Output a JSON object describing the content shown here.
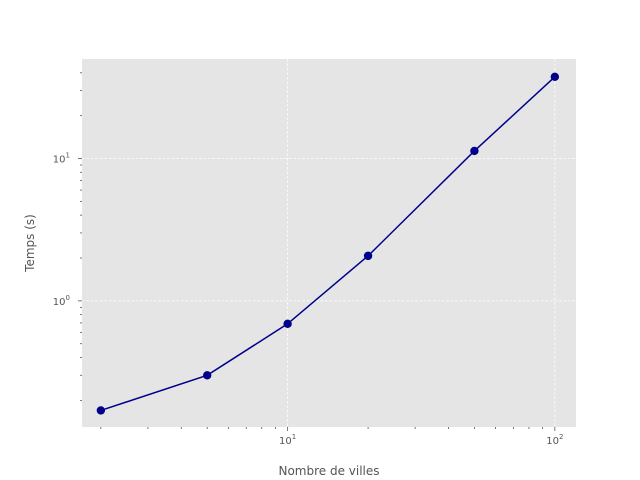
{
  "chart_data": {
    "type": "line",
    "xlabel": "Nombre de villes",
    "ylabel": "Temps (s)",
    "xscale": "log",
    "yscale": "log",
    "xlim": [
      1.7,
      120
    ],
    "ylim": [
      0.13,
      50
    ],
    "grid": true,
    "x_ticks": [
      {
        "value": 10,
        "base": "10",
        "exp": "1"
      },
      {
        "value": 100,
        "base": "10",
        "exp": "2"
      }
    ],
    "y_ticks": [
      {
        "value": 1,
        "base": "10",
        "exp": "0"
      },
      {
        "value": 10,
        "base": "10",
        "exp": "1"
      }
    ],
    "series": [
      {
        "color": "#00008b",
        "marker": "circle",
        "x": [
          2,
          5,
          10,
          20,
          50,
          100
        ],
        "y": [
          0.17,
          0.3,
          0.69,
          2.07,
          11.3,
          37.5
        ]
      }
    ],
    "colors": {
      "plot_background": "#e5e5e5",
      "grid": "#ffffff",
      "text": "#555555"
    }
  }
}
